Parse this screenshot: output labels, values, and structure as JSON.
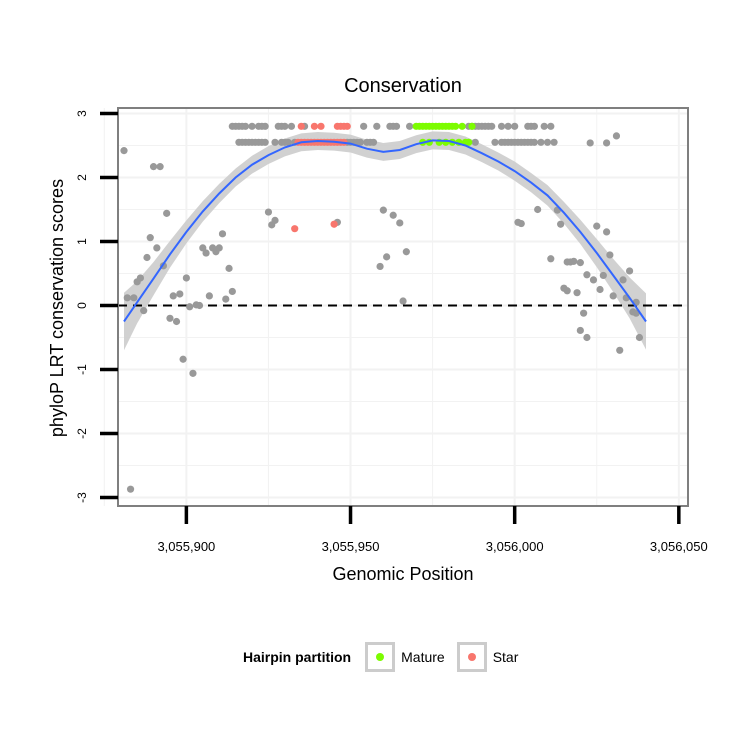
{
  "chart_data": {
    "type": "scatter",
    "title": "Conservation",
    "xlabel": "Genomic Position",
    "ylabel": "phyloP LRT conservation scores",
    "xlim": [
      3055881,
      3056050
    ],
    "ylim": [
      -3.1,
      3.1
    ],
    "xticks": [
      3055900,
      3055950,
      3056000,
      3056050
    ],
    "xtick_labels": [
      "3,055,900",
      "3,055,950",
      "3,056,000",
      "3,056,050"
    ],
    "yticks": [
      -3,
      -2,
      -1,
      0,
      1,
      2,
      3
    ],
    "ytick_labels": [
      "-3",
      "-2",
      "-1",
      "0",
      "1",
      "2",
      "3"
    ],
    "hline": {
      "y": 0,
      "style": "dashed"
    },
    "colors": {
      "other": "#999999",
      "mature": "#7CFC00",
      "star": "#F8766D",
      "smooth": "#3366FF",
      "ribbon": "#cccccc",
      "panel_border": "#7f7f7f",
      "grid": "#f2f2f2"
    },
    "legend": {
      "title": "Hairpin partition",
      "position": "bottom",
      "entries": [
        {
          "label": "Mature",
          "color": "#7CFC00"
        },
        {
          "label": "Star",
          "color": "#F8766D"
        }
      ]
    },
    "series": [
      {
        "name": "Other",
        "color": "#999999",
        "points": [
          [
            3055881,
            2.42
          ],
          [
            3055882,
            0.12
          ],
          [
            3055883,
            -2.87
          ],
          [
            3055884,
            0.12
          ],
          [
            3055885,
            0.37
          ],
          [
            3055886,
            0.43
          ],
          [
            3055887,
            -0.08
          ],
          [
            3055888,
            0.75
          ],
          [
            3055889,
            1.06
          ],
          [
            3055890,
            2.17
          ],
          [
            3055891,
            0.9
          ],
          [
            3055892,
            2.17
          ],
          [
            3055893,
            0.62
          ],
          [
            3055894,
            1.44
          ],
          [
            3055895,
            -0.2
          ],
          [
            3055896,
            0.15
          ],
          [
            3055897,
            -0.25
          ],
          [
            3055898,
            0.18
          ],
          [
            3055899,
            -0.84
          ],
          [
            3055900,
            0.43
          ],
          [
            3055901,
            -0.02
          ],
          [
            3055902,
            -1.06
          ],
          [
            3055903,
            0.01
          ],
          [
            3055904,
            0.0
          ],
          [
            3055905,
            0.9
          ],
          [
            3055906,
            0.82
          ],
          [
            3055907,
            0.15
          ],
          [
            3055908,
            0.9
          ],
          [
            3055909,
            0.84
          ],
          [
            3055910,
            0.9
          ],
          [
            3055911,
            1.12
          ],
          [
            3055912,
            0.1
          ],
          [
            3055913,
            0.58
          ],
          [
            3055914,
            0.22
          ],
          [
            3055914,
            2.8
          ],
          [
            3055915,
            2.8
          ],
          [
            3055916,
            2.55
          ],
          [
            3055916,
            2.8
          ],
          [
            3055917,
            2.55
          ],
          [
            3055917,
            2.8
          ],
          [
            3055918,
            2.55
          ],
          [
            3055918,
            2.8
          ],
          [
            3055919,
            2.55
          ],
          [
            3055920,
            2.55
          ],
          [
            3055920,
            2.8
          ],
          [
            3055921,
            2.55
          ],
          [
            3055922,
            2.55
          ],
          [
            3055922,
            2.8
          ],
          [
            3055923,
            2.55
          ],
          [
            3055923,
            2.8
          ],
          [
            3055924,
            2.55
          ],
          [
            3055924,
            2.8
          ],
          [
            3055925,
            1.46
          ],
          [
            3055926,
            1.26
          ],
          [
            3055927,
            2.55
          ],
          [
            3055927,
            1.33
          ],
          [
            3055928,
            2.8
          ],
          [
            3055929,
            2.55
          ],
          [
            3055929,
            2.8
          ],
          [
            3055930,
            2.55
          ],
          [
            3055930,
            2.8
          ],
          [
            3055931,
            2.55
          ],
          [
            3055932,
            2.8
          ],
          [
            3055933,
            2.55
          ],
          [
            3055936,
            2.8
          ],
          [
            3055946,
            1.3
          ],
          [
            3055949,
            2.55
          ],
          [
            3055950,
            2.55
          ],
          [
            3055951,
            2.55
          ],
          [
            3055952,
            2.55
          ],
          [
            3055953,
            2.55
          ],
          [
            3055954,
            2.8
          ],
          [
            3055955,
            2.55
          ],
          [
            3055956,
            2.55
          ],
          [
            3055957,
            2.55
          ],
          [
            3055958,
            2.8
          ],
          [
            3055959,
            0.61
          ],
          [
            3055960,
            1.49
          ],
          [
            3055961,
            0.76
          ],
          [
            3055962,
            2.8
          ],
          [
            3055963,
            2.8
          ],
          [
            3055963,
            1.41
          ],
          [
            3055964,
            2.8
          ],
          [
            3055965,
            1.29
          ],
          [
            3055966,
            0.07
          ],
          [
            3055967,
            0.84
          ],
          [
            3055968,
            2.8
          ],
          [
            3055986,
            2.8
          ],
          [
            3055987,
            2.8
          ],
          [
            3055988,
            2.8
          ],
          [
            3055988,
            2.55
          ],
          [
            3055989,
            2.8
          ],
          [
            3055990,
            2.8
          ],
          [
            3055991,
            2.8
          ],
          [
            3055992,
            2.8
          ],
          [
            3055993,
            2.8
          ],
          [
            3055994,
            2.55
          ],
          [
            3055996,
            2.55
          ],
          [
            3055996,
            2.8
          ],
          [
            3055997,
            2.55
          ],
          [
            3055998,
            2.55
          ],
          [
            3055998,
            2.8
          ],
          [
            3055999,
            2.55
          ],
          [
            3056000,
            2.8
          ],
          [
            3056000,
            2.55
          ],
          [
            3056001,
            2.55
          ],
          [
            3056001,
            1.3
          ],
          [
            3056002,
            1.28
          ],
          [
            3056002,
            2.55
          ],
          [
            3056003,
            2.55
          ],
          [
            3056004,
            2.8
          ],
          [
            3056004,
            2.55
          ],
          [
            3056005,
            2.8
          ],
          [
            3056005,
            2.55
          ],
          [
            3056006,
            2.8
          ],
          [
            3056006,
            2.55
          ],
          [
            3056007,
            1.5
          ],
          [
            3056008,
            2.55
          ],
          [
            3056009,
            2.8
          ],
          [
            3056010,
            2.55
          ],
          [
            3056011,
            0.73
          ],
          [
            3056011,
            2.8
          ],
          [
            3056012,
            2.55
          ],
          [
            3056013,
            1.49
          ],
          [
            3056014,
            1.27
          ],
          [
            3056015,
            0.27
          ],
          [
            3056016,
            0.68
          ],
          [
            3056016,
            0.23
          ],
          [
            3056017,
            0.68
          ],
          [
            3056018,
            0.69
          ],
          [
            3056019,
            0.2
          ],
          [
            3056020,
            -0.39
          ],
          [
            3056020,
            0.67
          ],
          [
            3056021,
            -0.12
          ],
          [
            3056022,
            -0.5
          ],
          [
            3056022,
            0.48
          ],
          [
            3056023,
            2.54
          ],
          [
            3056024,
            0.4
          ],
          [
            3056025,
            1.24
          ],
          [
            3056026,
            0.25
          ],
          [
            3056027,
            0.47
          ],
          [
            3056028,
            1.15
          ],
          [
            3056028,
            2.54
          ],
          [
            3056029,
            0.79
          ],
          [
            3056030,
            0.15
          ],
          [
            3056031,
            2.65
          ],
          [
            3056032,
            -0.7
          ],
          [
            3056033,
            0.4
          ],
          [
            3056034,
            0.12
          ],
          [
            3056035,
            0.54
          ],
          [
            3056036,
            -0.1
          ],
          [
            3056037,
            0.05
          ],
          [
            3056037,
            -0.12
          ],
          [
            3056038,
            -0.5
          ]
        ]
      },
      {
        "name": "Star",
        "color": "#F8766D",
        "points": [
          [
            3055933,
            1.2
          ],
          [
            3055934,
            2.55
          ],
          [
            3055935,
            2.8
          ],
          [
            3055935,
            2.55
          ],
          [
            3055936,
            2.55
          ],
          [
            3055937,
            2.55
          ],
          [
            3055938,
            2.55
          ],
          [
            3055939,
            2.8
          ],
          [
            3055939,
            2.55
          ],
          [
            3055940,
            2.55
          ],
          [
            3055941,
            2.8
          ],
          [
            3055941,
            2.55
          ],
          [
            3055942,
            2.55
          ],
          [
            3055943,
            2.55
          ],
          [
            3055944,
            2.55
          ],
          [
            3055945,
            1.27
          ],
          [
            3055945,
            2.55
          ],
          [
            3055946,
            2.8
          ],
          [
            3055946,
            2.55
          ],
          [
            3055947,
            2.8
          ],
          [
            3055947,
            2.55
          ],
          [
            3055948,
            2.8
          ],
          [
            3055948,
            2.55
          ],
          [
            3055949,
            2.8
          ]
        ]
      },
      {
        "name": "Mature",
        "color": "#7CFC00",
        "points": [
          [
            3055970,
            2.8
          ],
          [
            3055971,
            2.8
          ],
          [
            3055972,
            2.8
          ],
          [
            3055972,
            2.55
          ],
          [
            3055973,
            2.8
          ],
          [
            3055974,
            2.8
          ],
          [
            3055974,
            2.55
          ],
          [
            3055975,
            2.8
          ],
          [
            3055976,
            2.8
          ],
          [
            3055977,
            2.8
          ],
          [
            3055977,
            2.55
          ],
          [
            3055978,
            2.8
          ],
          [
            3055979,
            2.8
          ],
          [
            3055979,
            2.55
          ],
          [
            3055980,
            2.8
          ],
          [
            3055981,
            2.8
          ],
          [
            3055981,
            2.55
          ],
          [
            3055982,
            2.8
          ],
          [
            3055983,
            2.55
          ],
          [
            3055984,
            2.8
          ],
          [
            3055985,
            2.55
          ],
          [
            3055986,
            2.55
          ],
          [
            3055987,
            2.8
          ]
        ]
      }
    ],
    "smooth": {
      "name": "loess",
      "color": "#3366FF",
      "points": [
        [
          3055881,
          -0.25
        ],
        [
          3055885,
          0.05
        ],
        [
          3055890,
          0.42
        ],
        [
          3055895,
          0.8
        ],
        [
          3055900,
          1.15
        ],
        [
          3055905,
          1.47
        ],
        [
          3055910,
          1.75
        ],
        [
          3055915,
          2.0
        ],
        [
          3055920,
          2.2
        ],
        [
          3055925,
          2.35
        ],
        [
          3055930,
          2.47
        ],
        [
          3055935,
          2.55
        ],
        [
          3055940,
          2.57
        ],
        [
          3055945,
          2.56
        ],
        [
          3055950,
          2.53
        ],
        [
          3055955,
          2.45
        ],
        [
          3055960,
          2.4
        ],
        [
          3055965,
          2.43
        ],
        [
          3055970,
          2.52
        ],
        [
          3055975,
          2.58
        ],
        [
          3055980,
          2.57
        ],
        [
          3055985,
          2.5
        ],
        [
          3055990,
          2.38
        ],
        [
          3055995,
          2.25
        ],
        [
          3056000,
          2.1
        ],
        [
          3056005,
          1.92
        ],
        [
          3056010,
          1.72
        ],
        [
          3056015,
          1.45
        ],
        [
          3056020,
          1.15
        ],
        [
          3056025,
          0.82
        ],
        [
          3056030,
          0.47
        ],
        [
          3056035,
          0.12
        ],
        [
          3056040,
          -0.25
        ]
      ],
      "ribbon_halfwidth": [
        0.45,
        0.33,
        0.26,
        0.21,
        0.18,
        0.16,
        0.15,
        0.14,
        0.14,
        0.14,
        0.14,
        0.14,
        0.14,
        0.14,
        0.14,
        0.14,
        0.14,
        0.14,
        0.14,
        0.14,
        0.14,
        0.14,
        0.14,
        0.14,
        0.15,
        0.15,
        0.16,
        0.17,
        0.19,
        0.22,
        0.26,
        0.32,
        0.44
      ]
    }
  }
}
